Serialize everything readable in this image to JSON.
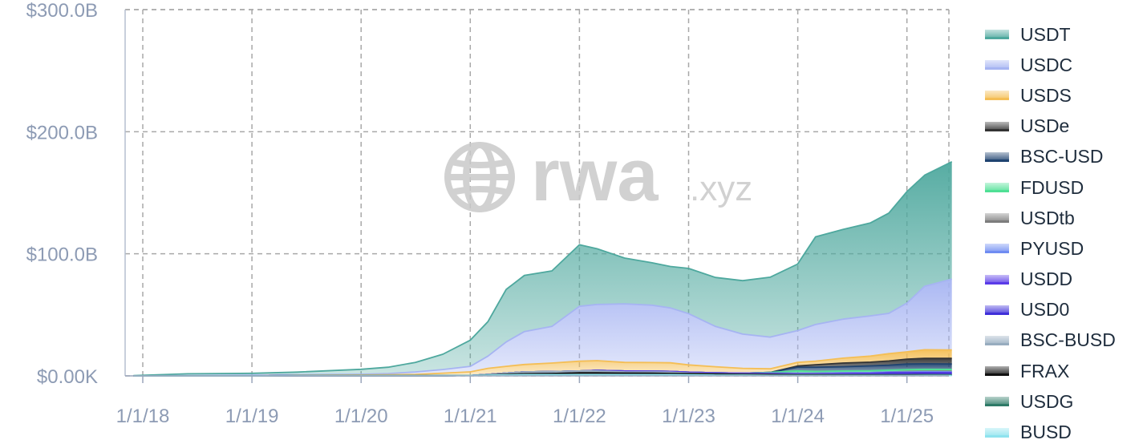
{
  "chart_data": {
    "type": "area",
    "stacked": true,
    "title": "",
    "xlabel": "",
    "ylabel": "",
    "x_ticks": [
      "1/1/18",
      "1/1/19",
      "1/1/20",
      "1/1/21",
      "1/1/22",
      "1/1/23",
      "1/1/24",
      "1/1/25"
    ],
    "y_ticks": [
      "$0.00K",
      "$100.0B",
      "$200.0B",
      "$300.0B"
    ],
    "ylim": [
      0,
      300
    ],
    "y_unit": "billions USD",
    "xlim": [
      "2017-12-01",
      "2025-05-31"
    ],
    "grid": true,
    "legend_position": "right",
    "watermark": "rwa.xyz",
    "x": [
      "2017-12-01",
      "2018-06-01",
      "2019-01-01",
      "2019-06-01",
      "2020-01-01",
      "2020-04-01",
      "2020-07-01",
      "2020-10-01",
      "2021-01-01",
      "2021-03-01",
      "2021-05-01",
      "2021-07-01",
      "2021-10-01",
      "2022-01-01",
      "2022-03-01",
      "2022-06-01",
      "2022-09-01",
      "2022-11-01",
      "2023-01-01",
      "2023-04-01",
      "2023-07-01",
      "2023-10-01",
      "2024-01-01",
      "2024-03-01",
      "2024-06-01",
      "2024-09-01",
      "2024-11-01",
      "2025-01-01",
      "2025-03-01",
      "2025-05-31"
    ],
    "series": [
      {
        "name": "USDT",
        "color": "#4ea89e",
        "values": [
          0.2,
          1.5,
          1.6,
          2.1,
          4.1,
          5.2,
          7.8,
          12.5,
          21.5,
          28.3,
          43.0,
          46.0,
          45.5,
          50.4,
          45.6,
          37.5,
          34.7,
          33.9,
          37.0,
          40.1,
          43.8,
          49.0,
          54.5,
          71.8,
          73.5,
          76.1,
          82.1,
          91.3,
          91.0,
          96.1
        ]
      },
      {
        "name": "USDC",
        "color": "#a6b4f2",
        "values": [
          0,
          0.2,
          0.5,
          0.5,
          0.6,
          1.0,
          2.0,
          3.0,
          4.5,
          10.0,
          20.0,
          27.0,
          30.0,
          45.0,
          46.0,
          48.0,
          47.0,
          45.0,
          42.0,
          33.0,
          28.0,
          26.0,
          26.0,
          30.0,
          32.0,
          33.0,
          33.0,
          40.0,
          52.0,
          58.0
        ]
      },
      {
        "name": "USDS",
        "color": "#f4be55",
        "values": [
          0,
          0,
          0,
          0.3,
          0.5,
          0.7,
          1.0,
          2.0,
          3.0,
          5.0,
          5.5,
          6.0,
          7.0,
          8.0,
          8.0,
          7.0,
          7.0,
          7.0,
          6.0,
          5.0,
          4.0,
          3.0,
          3.0,
          3.0,
          4.0,
          5.0,
          6.0,
          6.0,
          7.0,
          7.0
        ]
      },
      {
        "name": "USDe",
        "color": "#333333",
        "values": [
          0,
          0,
          0,
          0,
          0,
          0,
          0,
          0,
          0,
          0,
          0,
          0,
          0,
          0,
          0,
          0,
          0,
          0,
          0,
          0,
          0,
          0,
          1.0,
          2.0,
          3.0,
          3.0,
          3.5,
          4.0,
          4.5,
          4.5
        ]
      },
      {
        "name": "BSC-USD",
        "color": "#1f4370",
        "values": [
          0,
          0,
          0,
          0,
          0,
          0,
          0,
          0,
          0,
          0,
          0,
          0,
          0,
          0,
          0,
          0,
          0,
          0,
          0,
          0,
          0,
          0,
          3.0,
          3.5,
          3.5,
          4.0,
          4.0,
          4.5,
          4.5,
          4.5
        ]
      },
      {
        "name": "FDUSD",
        "color": "#4fe095",
        "values": [
          0,
          0,
          0,
          0,
          0,
          0,
          0,
          0,
          0,
          0,
          0,
          0,
          0,
          0,
          0,
          0,
          0,
          0,
          0,
          0,
          0,
          0.5,
          2.0,
          1.5,
          1.5,
          1.5,
          1.5,
          1.5,
          1.5,
          1.5
        ]
      },
      {
        "name": "USDtb",
        "color": "#7d7d7d",
        "values": [
          0,
          0,
          0,
          0,
          0,
          0,
          0,
          0,
          0,
          0,
          0,
          0,
          0,
          0,
          0,
          0,
          0,
          0,
          0,
          0,
          0,
          0,
          0,
          0,
          0,
          0,
          0,
          0.5,
          0.5,
          0.5
        ]
      },
      {
        "name": "PYUSD",
        "color": "#6f8cf2",
        "values": [
          0,
          0,
          0,
          0,
          0,
          0,
          0,
          0,
          0,
          0,
          0,
          0,
          0,
          0,
          0,
          0,
          0,
          0,
          0,
          0,
          0,
          0.3,
          0.3,
          0.3,
          0.5,
          0.6,
          0.6,
          0.6,
          0.7,
          0.7
        ]
      },
      {
        "name": "USDD",
        "color": "#5a3be8",
        "values": [
          0,
          0,
          0,
          0,
          0,
          0,
          0,
          0,
          0,
          0,
          0,
          0,
          0,
          0,
          0.5,
          0.7,
          0.7,
          0.7,
          0.7,
          0.7,
          0.7,
          0.7,
          0.7,
          0.7,
          0.7,
          0.7,
          0.7,
          0.7,
          0.7,
          0.7
        ]
      },
      {
        "name": "USD0",
        "color": "#3f2fd9",
        "values": [
          0,
          0,
          0,
          0,
          0,
          0,
          0,
          0,
          0,
          0,
          0,
          0,
          0,
          0,
          0,
          0,
          0,
          0,
          0,
          0,
          0,
          0,
          0,
          0,
          0.3,
          0.5,
          1.0,
          1.0,
          1.0,
          1.0
        ]
      },
      {
        "name": "BSC-BUSD",
        "color": "#97acbf",
        "values": [
          0,
          0,
          0,
          0,
          0,
          0,
          0,
          0,
          0,
          0.5,
          1.0,
          1.5,
          1.5,
          1.5,
          1.5,
          1.0,
          1.0,
          1.0,
          0.5,
          0.3,
          0.2,
          0.2,
          0.2,
          0.2,
          0.2,
          0.1,
          0.1,
          0.1,
          0.1,
          0.1
        ]
      },
      {
        "name": "FRAX",
        "color": "#111111",
        "values": [
          0,
          0,
          0,
          0,
          0,
          0,
          0,
          0,
          0,
          0.2,
          0.5,
          0.8,
          1.0,
          1.5,
          1.5,
          1.3,
          1.2,
          1.0,
          1.0,
          0.9,
          0.8,
          0.7,
          0.6,
          0.6,
          0.5,
          0.5,
          0.4,
          0.4,
          0.4,
          0.3
        ]
      },
      {
        "name": "USDG",
        "color": "#2e7a67",
        "values": [
          0,
          0,
          0,
          0,
          0,
          0,
          0,
          0,
          0,
          0,
          0,
          0,
          0,
          0,
          0,
          0,
          0,
          0,
          0,
          0,
          0,
          0,
          0,
          0,
          0,
          0,
          0.1,
          0.1,
          0.2,
          0.2
        ]
      },
      {
        "name": "BUSD",
        "color": "#8ee3ee",
        "values": [
          0,
          0,
          0,
          0.2,
          0.2,
          0.2,
          0.2,
          0.2,
          0.3,
          0.5,
          0.8,
          1.0,
          1.0,
          1.0,
          1.0,
          1.0,
          1.0,
          1.0,
          0.8,
          0.6,
          0.5,
          0.4,
          0.3,
          0.3,
          0.3,
          0.3,
          0.3,
          0.3,
          0.3,
          0.3
        ]
      }
    ]
  }
}
